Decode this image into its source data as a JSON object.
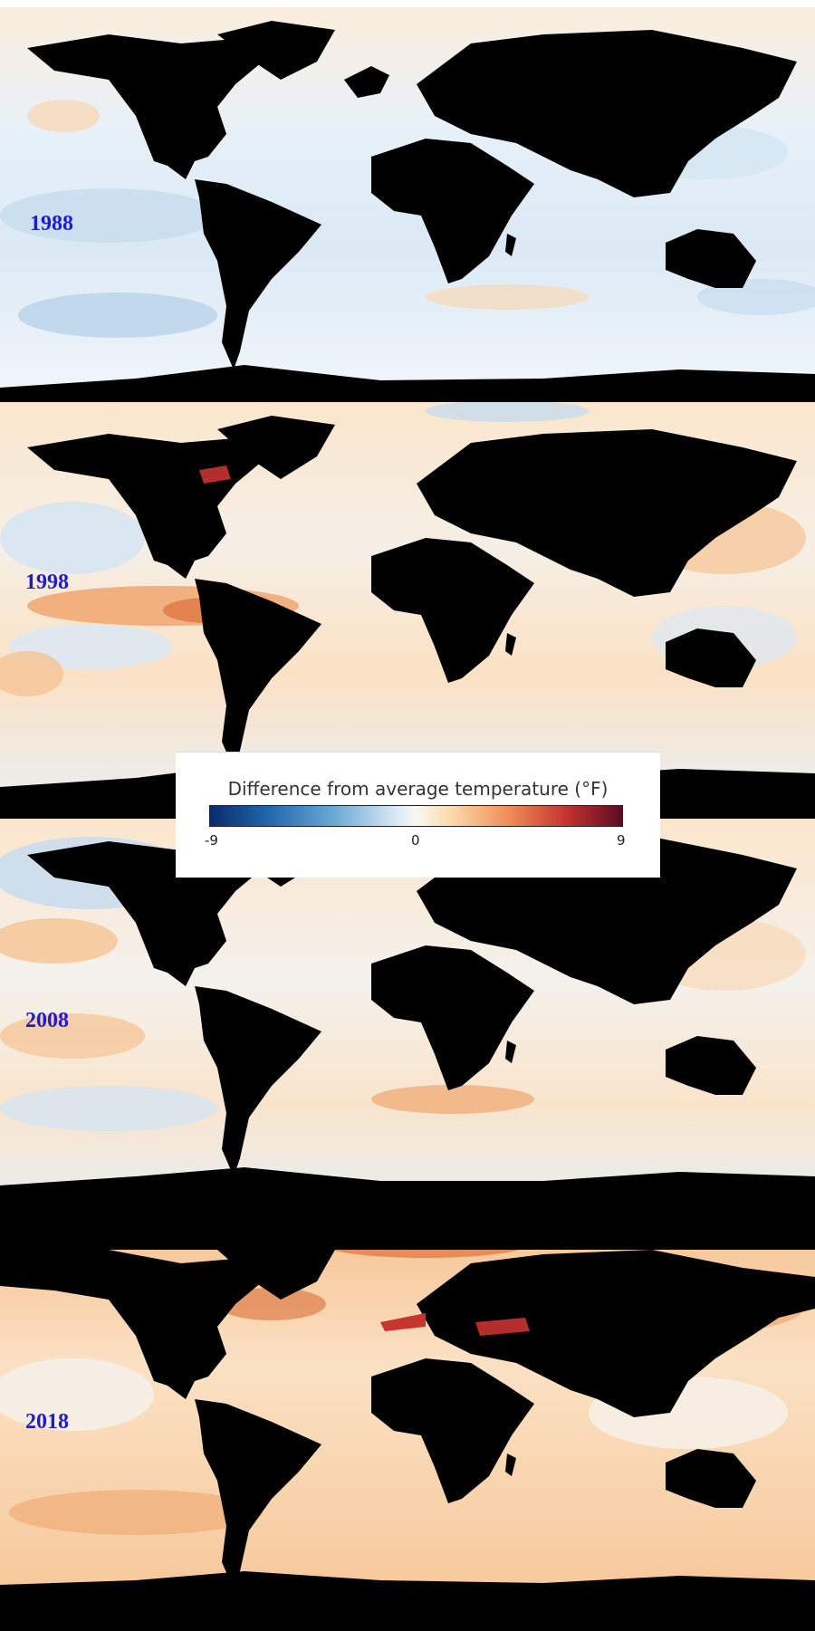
{
  "panels": [
    {
      "year": "1988"
    },
    {
      "year": "1998"
    },
    {
      "year": "2008"
    },
    {
      "year": "2018"
    }
  ],
  "legend": {
    "title": "Difference from average temperature (°F)",
    "min_label": "-9",
    "mid_label": "0",
    "max_label": "9"
  },
  "colors": {
    "land": "#000000",
    "ocean_cold": "#2166ac",
    "ocean_neutral": "#f5f8fb",
    "ocean_warm": "#e8763f",
    "ocean_hot": "#5c0a24",
    "year_label": "#1c1cd6"
  }
}
